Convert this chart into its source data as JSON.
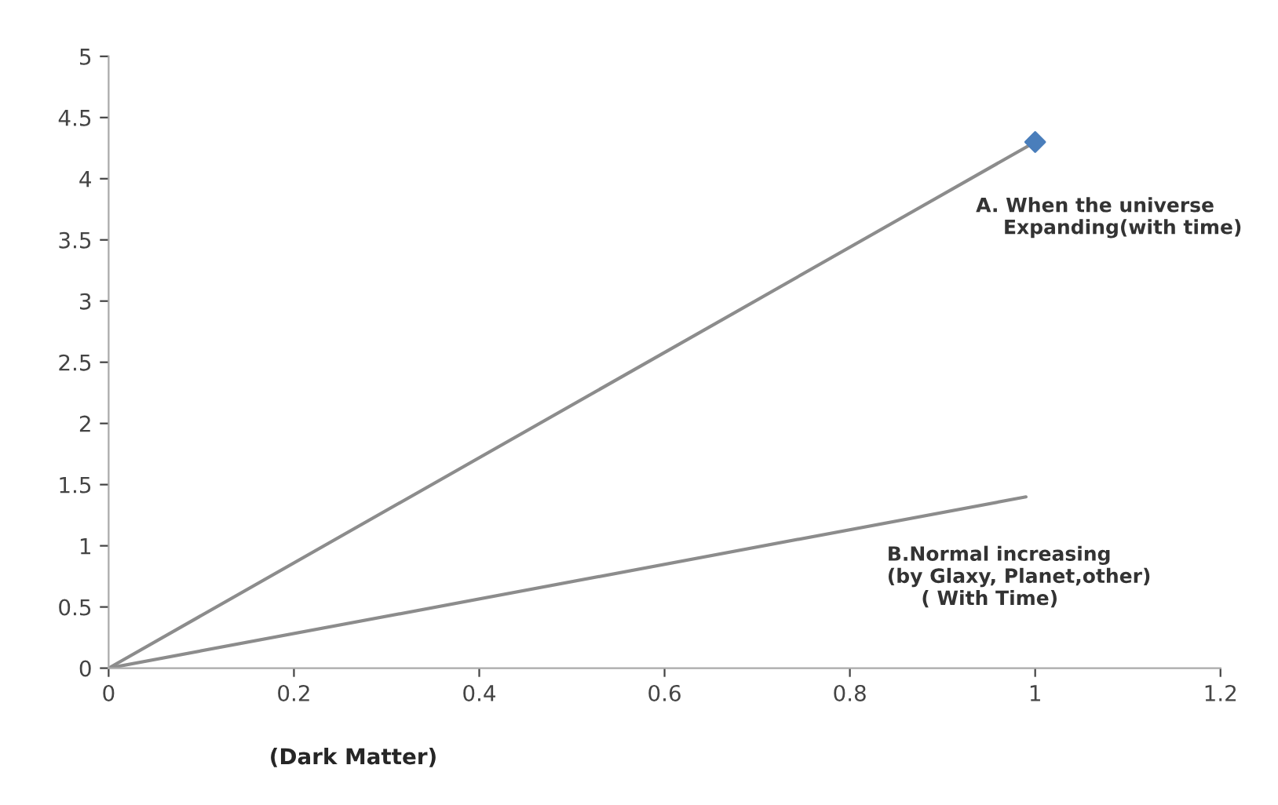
{
  "chart_data": {
    "type": "line",
    "xlabel": "(Dark Matter)",
    "series": [
      {
        "color": "#8c8c8c",
        "x": [
          0,
          1
        ],
        "values": [
          0,
          4.3
        ],
        "marker": "none"
      },
      {
        "type": "scatter",
        "color": "#4a7ebb",
        "x": [
          1
        ],
        "values": [
          4.3
        ],
        "marker": "diamond"
      },
      {
        "color": "#8c8c8c",
        "x": [
          0,
          0.99
        ],
        "values": [
          0,
          1.4
        ],
        "marker": "none"
      }
    ],
    "annotations": [
      "A. When the universe\n    Expanding(with time)",
      "B.Normal increasing\n(by Glaxy, Planet,other)\n     ( With Time)"
    ],
    "xlim": [
      0,
      1.2
    ],
    "xticks": [
      0,
      0.2,
      0.4,
      0.6,
      0.8,
      1,
      1.2
    ],
    "ylim": [
      0,
      5
    ],
    "yticks": [
      0,
      0.5,
      1,
      1.5,
      2,
      2.5,
      3,
      3.5,
      4,
      4.5,
      5
    ],
    "grid": false,
    "legend": false
  }
}
